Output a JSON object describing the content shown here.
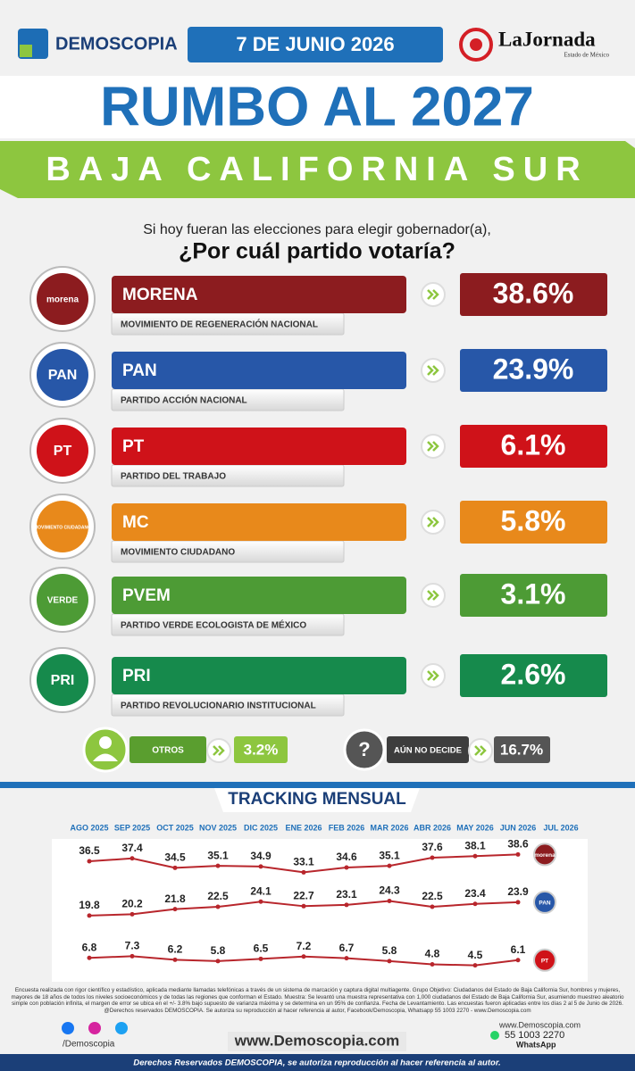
{
  "header": {
    "brand": "DEMOSCOPIA",
    "date": "7 DE JUNIO 2026",
    "partner": "LaJornada",
    "partner_sub": "Estado de México"
  },
  "title": "RUMBO AL 2027",
  "region": "BAJA CALIFORNIA SUR",
  "question": {
    "line1": "Si hoy fueran las elecciones para elegir gobernador(a),",
    "line2": "¿Por cuál partido votaría?"
  },
  "parties": [
    {
      "logo": "morena",
      "name": "MORENA",
      "full_name": "MOVIMIENTO DE REGENERACIÓN NACIONAL",
      "pct": "38.6%",
      "color": "#8c1c1f"
    },
    {
      "logo": "PAN",
      "name": "PAN",
      "full_name": "PARTIDO ACCIÓN NACIONAL",
      "pct": "23.9%",
      "color": "#2757a8"
    },
    {
      "logo": "PT",
      "name": "PT",
      "full_name": "PARTIDO DEL TRABAJO",
      "pct": "6.1%",
      "color": "#cf1219"
    },
    {
      "logo": "MOVIMIENTO CIUDADANO",
      "name": "MC",
      "full_name": "MOVIMIENTO CIUDADANO",
      "pct": "5.8%",
      "color": "#e8891b"
    },
    {
      "logo": "VERDE",
      "name": "PVEM",
      "full_name": "PARTIDO VERDE ECOLOGISTA DE MÉXICO",
      "pct": "3.1%",
      "color": "#4d9b35"
    },
    {
      "logo": "PRI",
      "name": "PRI",
      "full_name": "PARTIDO REVOLUCIONARIO INSTITUCIONAL",
      "pct": "2.6%",
      "color": "#168a4c"
    }
  ],
  "others": {
    "label": "OTROS",
    "pct": "3.2%"
  },
  "undecided": {
    "icon": "?",
    "label": "AÚN NO DECIDE",
    "pct": "16.7%"
  },
  "tracking": {
    "type": "line",
    "title": "TRACKING MENSUAL",
    "categories": [
      "AGO 2025",
      "SEP 2025",
      "OCT 2025",
      "NOV 2025",
      "DIC 2025",
      "ENE 2026",
      "FEB 2026",
      "MAR 2026",
      "ABR 2026",
      "MAY 2026",
      "JUN 2026",
      "JUL 2026"
    ],
    "ylim": [
      0,
      42
    ],
    "series": [
      {
        "name": "morena",
        "color": "#b8262c",
        "values": [
          36.5,
          37.4,
          34.5,
          35.1,
          34.9,
          33.1,
          34.6,
          35.1,
          37.6,
          38.1,
          38.6,
          null
        ]
      },
      {
        "name": "PAN",
        "color": "#b8262c",
        "values": [
          19.8,
          20.2,
          21.8,
          22.5,
          24.1,
          22.7,
          23.1,
          24.3,
          22.5,
          23.4,
          23.9,
          null
        ]
      },
      {
        "name": "PT",
        "color": "#b8262c",
        "values": [
          6.8,
          7.3,
          6.2,
          5.8,
          6.5,
          7.2,
          6.7,
          5.8,
          4.8,
          4.5,
          6.1,
          null
        ]
      }
    ]
  },
  "footer": {
    "disclaimer": "Encuesta realizada con rigor científico y estadístico, aplicada mediante llamadas telefónicas a través de un sistema de marcación y captura digital multiagente. Grupo Objetivo: Ciudadanos del Estado de Baja California Sur, hombres y mujeres, mayores de 18 años de todos los niveles socioeconómicos y de todas las regiones que conforman el Estado. Muestra: Se levantó una muestra representativa con 1,000 ciudadanos del Estado de Baja California Sur, asumiendo muestreo aleatorio simple con población infinita, el margen de error se ubica en el +/- 3.8% bajo supuesto de varianza máxima y se determina en un 95% de confianza. Fecha de Levantamiento. Las encuestas fueron aplicadas entre los días 2 al 5 de Junio de 2026. @Derechos reservados DEMOSCOPIA. Se autoriza su reproducción al hacer referencia al autor, Facebook/Demoscopia, Whatsapp 55 1003 2270 - www.Demoscopia.com",
    "social": "/Demoscopia",
    "website": "www.Demoscopia.com",
    "website_small": "www.Demoscopia.com",
    "phone": "55 1003 2270",
    "whatsapp": "WhatsApp",
    "rights": "Derechos Reservados DEMOSCOPIA, se autoriza reproducción al hacer referencia al autor."
  }
}
